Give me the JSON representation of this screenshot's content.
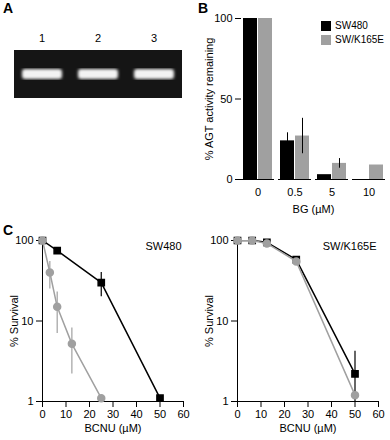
{
  "gel": {
    "panel_label": "A",
    "lanes": [
      "1",
      "2",
      "3"
    ]
  },
  "chart_data": [
    {
      "panel_label": "B",
      "type": "bar",
      "categories": [
        "0",
        "0.5",
        "5",
        "10"
      ],
      "xlabel": "BG (µM)",
      "ylabel": "% AGT activity remaining",
      "ylim": [
        0,
        100
      ],
      "yticks": [
        0,
        50,
        100
      ],
      "legend": "top-right",
      "series": [
        {
          "name": "SW480",
          "color": "#000000",
          "values": [
            100,
            24,
            3,
            null
          ],
          "errors": [
            0,
            5,
            0,
            null
          ]
        },
        {
          "name": "SW/K165E",
          "color": "#a0a0a0",
          "values": [
            100,
            27,
            10,
            9
          ],
          "errors": [
            0,
            11,
            3,
            0
          ]
        }
      ]
    },
    {
      "panel_label": "C",
      "type": "line",
      "title": "SW480",
      "xlabel": "BCNU (µM)",
      "ylabel": "% Survival",
      "xlim": [
        0,
        60
      ],
      "xticks": [
        0,
        10,
        20,
        30,
        40,
        50,
        60
      ],
      "ylim": [
        1,
        100
      ],
      "yticks": [
        1,
        10,
        100
      ],
      "log": "y",
      "series": [
        {
          "color": "#000000",
          "marker": "square",
          "x": [
            0,
            6.25,
            25,
            50
          ],
          "values": [
            100,
            75,
            30,
            1.1
          ],
          "errors": [
            0,
            0,
            10,
            0
          ]
        },
        {
          "color": "#a0a0a0",
          "marker": "circle",
          "x": [
            0,
            3.125,
            6.25,
            12.5,
            25
          ],
          "values": [
            100,
            40,
            15,
            5.2,
            1.1
          ],
          "errors": [
            0,
            15,
            8,
            3,
            0
          ]
        }
      ]
    },
    {
      "type": "line",
      "title": "SW/K165E",
      "xlabel": "BCNU (µM)",
      "ylabel": "% Survival",
      "xlim": [
        0,
        60
      ],
      "xticks": [
        0,
        10,
        20,
        30,
        40,
        50,
        60
      ],
      "ylim": [
        1,
        100
      ],
      "yticks": [
        1,
        10,
        100
      ],
      "log": "y",
      "series": [
        {
          "color": "#000000",
          "marker": "square",
          "x": [
            0,
            6.25,
            12.5,
            25,
            50
          ],
          "values": [
            100,
            100,
            95,
            58,
            2.2
          ],
          "errors": [
            0,
            0,
            0,
            0,
            2
          ]
        },
        {
          "color": "#a0a0a0",
          "marker": "circle",
          "x": [
            0,
            6.25,
            12.5,
            25,
            50
          ],
          "values": [
            100,
            100,
            92,
            55,
            1.2
          ],
          "errors": [
            0,
            0,
            0,
            0,
            0
          ]
        }
      ]
    }
  ]
}
